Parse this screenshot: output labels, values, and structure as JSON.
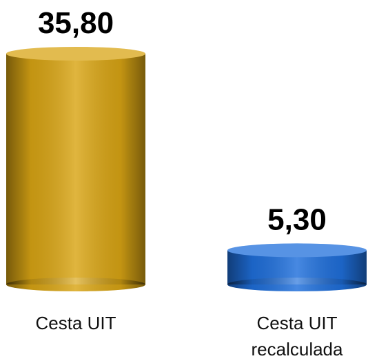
{
  "chart_data": {
    "type": "bar",
    "categories": [
      "Cesta UIT",
      "Cesta UIT recalculada"
    ],
    "values": [
      35.8,
      5.3
    ],
    "value_labels": [
      "35,80",
      "5,30"
    ],
    "colors": [
      "#D9A514",
      "#1F6FDB"
    ]
  }
}
